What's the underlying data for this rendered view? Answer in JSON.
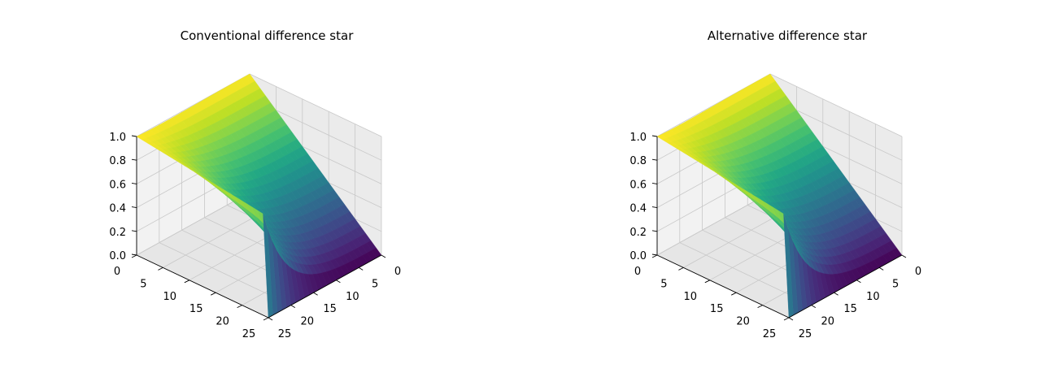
{
  "chart_data": [
    {
      "type": "surface3d",
      "title": "Conventional difference star",
      "xlabel": "",
      "ylabel": "",
      "zlabel": "",
      "x_ticks": [
        0,
        5,
        10,
        15,
        20,
        25
      ],
      "y_ticks": [
        0,
        5,
        10,
        15,
        20,
        25
      ],
      "z_ticks": [
        "0.0",
        "0.2",
        "0.4",
        "0.6",
        "0.8",
        "1.0"
      ],
      "xlim": [
        0,
        25
      ],
      "ylim": [
        0,
        25
      ],
      "zlim": [
        0,
        1
      ],
      "grid": true,
      "colormap": "viridis",
      "surface": "z rises from 0 at the far corner to 1 along the x = 0 edge; values near the y = 0 edge approach 1 steeply"
    },
    {
      "type": "surface3d",
      "title": "Alternative difference star",
      "xlabel": "",
      "ylabel": "",
      "zlabel": "",
      "x_ticks": [
        0,
        5,
        10,
        15,
        20,
        25
      ],
      "y_ticks": [
        0,
        5,
        10,
        15,
        20,
        25
      ],
      "z_ticks": [
        "0.0",
        "0.2",
        "0.4",
        "0.6",
        "0.8",
        "1.0"
      ],
      "xlim": [
        0,
        25
      ],
      "ylim": [
        0,
        25
      ],
      "zlim": [
        0,
        1
      ],
      "grid": true,
      "colormap": "viridis",
      "surface": "z rises from 0 at the far corner to 1 along the x = 0 edge; values near the y = 0 edge approach 1 steeply"
    }
  ]
}
